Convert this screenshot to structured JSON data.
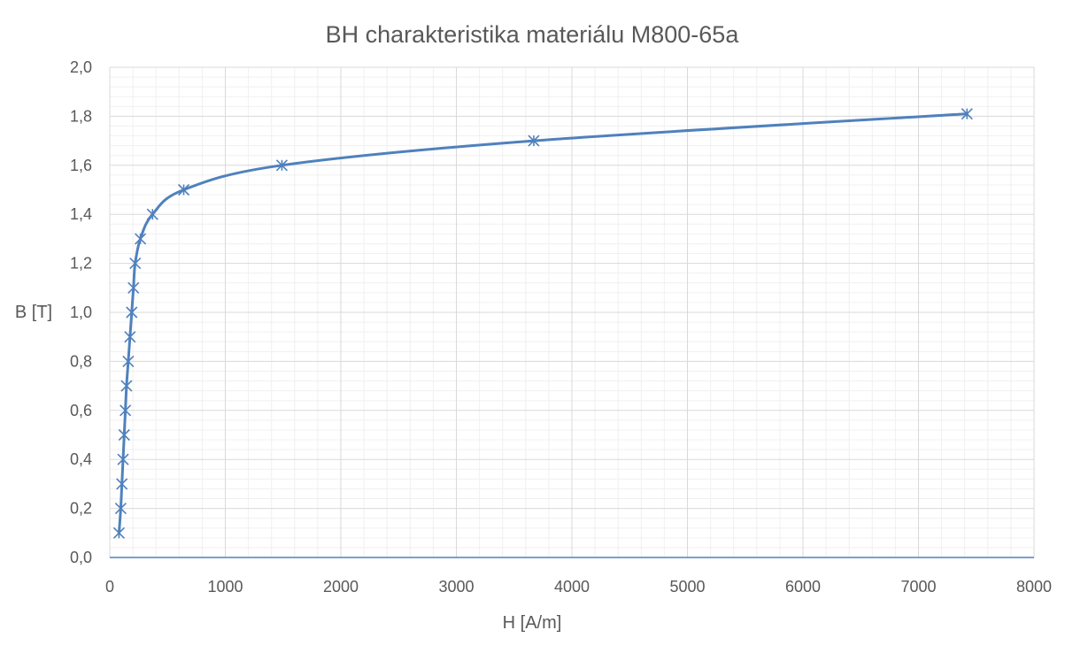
{
  "chart_data": {
    "type": "scatter",
    "title": "BH charakteristika materiálu M800-65a",
    "xlabel": "H [A/m]",
    "ylabel": "B [T]",
    "xlim": [
      0,
      8000
    ],
    "ylim": [
      0,
      2.0
    ],
    "x_ticks": [
      "0",
      "1000",
      "2000",
      "3000",
      "4000",
      "5000",
      "6000",
      "7000",
      "8000"
    ],
    "y_ticks": [
      "0,0",
      "0,2",
      "0,4",
      "0,6",
      "0,8",
      "1,0",
      "1,2",
      "1,4",
      "1,6",
      "1,8",
      "2,0"
    ],
    "x_major_step": 1000,
    "x_minor_step": 200,
    "y_major_step": 0.2,
    "y_minor_step": 0.04,
    "grid": true,
    "smooth_line": true,
    "marker": "asterisk",
    "series": [
      {
        "color": "#4f81bd",
        "x": [
          80,
          95,
          105,
          115,
          125,
          135,
          145,
          160,
          175,
          190,
          205,
          220,
          265,
          370,
          640,
          1490,
          3670,
          7420
        ],
        "y": [
          0.1,
          0.2,
          0.3,
          0.4,
          0.5,
          0.6,
          0.7,
          0.8,
          0.9,
          1.0,
          1.1,
          1.2,
          1.3,
          1.4,
          1.5,
          1.6,
          1.7,
          1.81
        ]
      }
    ]
  }
}
